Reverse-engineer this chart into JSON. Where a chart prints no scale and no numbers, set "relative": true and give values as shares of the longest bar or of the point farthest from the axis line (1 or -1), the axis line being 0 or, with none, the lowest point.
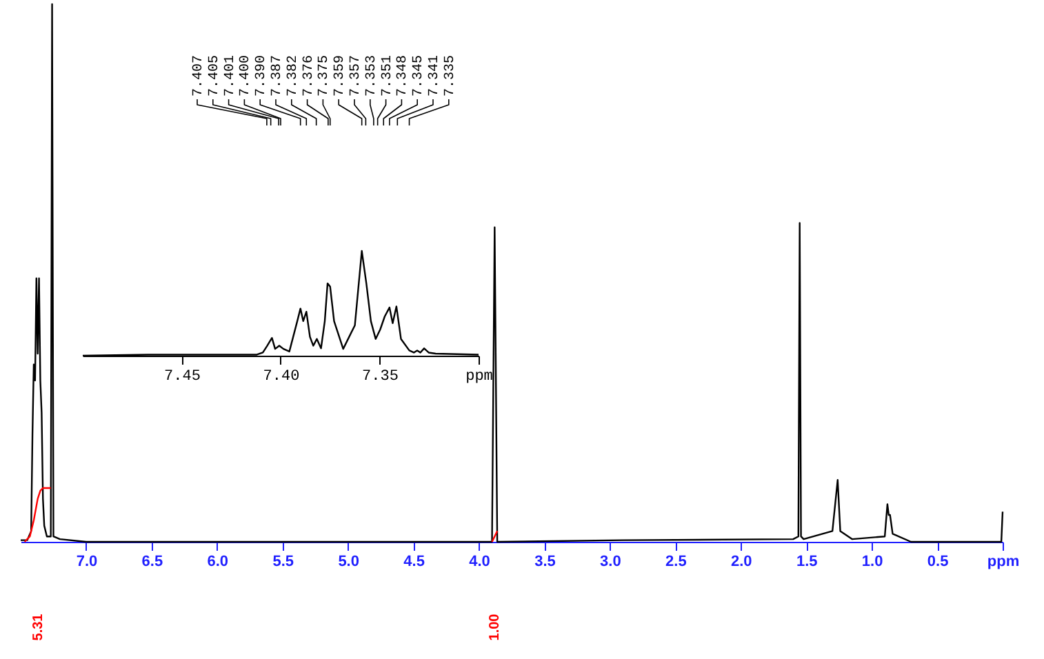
{
  "chart_data": [
    {
      "type": "line",
      "relative": true,
      "xlim": [
        7.5,
        0.0
      ],
      "xticks": [
        {
          "value": 7,
          "label": "7.0"
        },
        6.5,
        {
          "value": 6,
          "label": "6.0"
        },
        5.5,
        {
          "value": 5,
          "label": "5.0"
        },
        4.5,
        {
          "value": 4,
          "label": "4.0"
        },
        3.5,
        {
          "value": 3,
          "label": "3.0"
        },
        2.5,
        {
          "value": 2,
          "label": "2.0"
        },
        1.5,
        {
          "value": 1,
          "label": "1.0"
        },
        0.5,
        {
          "value": 0,
          "label": "ppm"
        }
      ],
      "series": [
        {
          "color": "#000000",
          "x": [
            7.5,
            7.45,
            7.42,
            7.41,
            7.4,
            7.39,
            7.38,
            7.37,
            7.36,
            7.35,
            7.34,
            7.33,
            7.32,
            7.3,
            7.27,
            7.26,
            7.25,
            7.2,
            7.0,
            5.0,
            3.9,
            3.88,
            3.86,
            2.9,
            1.6,
            1.56,
            1.55,
            1.54,
            1.52,
            1.3,
            1.26,
            1.24,
            1.15,
            0.9,
            0.88,
            0.87,
            0.86,
            0.84,
            0.7,
            0.01,
            0.0
          ],
          "values": [
            0.003,
            0.003,
            0.02,
            0.2,
            0.33,
            0.3,
            0.49,
            0.35,
            0.49,
            0.3,
            0.24,
            0.08,
            0.03,
            0.01,
            0.01,
            1,
            0.01,
            0.005,
            0,
            0,
            0,
            0.585,
            0,
            0.003,
            0.005,
            0.01,
            0.593,
            0.01,
            0.005,
            0.02,
            0.115,
            0.02,
            0.005,
            0.01,
            0.07,
            0.05,
            0.05,
            0.015,
            0,
            0,
            0.056
          ]
        },
        {
          "color": "#ff0000",
          "x": [
            7.47,
            7.43,
            7.4,
            7.37,
            7.35,
            7.33,
            7.27
          ],
          "values": [
            0,
            0.01,
            0.04,
            0.08,
            0.095,
            0.1,
            0.1
          ]
        },
        {
          "color": "#ff0000",
          "x": [
            3.9,
            3.88,
            3.86
          ],
          "values": [
            0,
            0.01,
            0.02
          ]
        }
      ],
      "annotations": [
        "5.31",
        "1.00"
      ]
    },
    {
      "type": "line",
      "relative": true,
      "xlim": [
        7.5,
        7.3
      ],
      "xticks": [
        7.45,
        {
          "value": 7.4,
          "label": "7.40"
        },
        7.35,
        {
          "value": 7.3,
          "label": "ppm"
        }
      ],
      "series": [
        {
          "color": "#000000",
          "x": [
            7.5,
            7.467,
            7.412,
            7.409,
            7.4068,
            7.4044,
            7.4028,
            7.4007,
            7.3986,
            7.3956,
            7.3916,
            7.39,
            7.3886,
            7.387,
            7.3852,
            7.3835,
            7.3817,
            7.3796,
            7.3777,
            7.3763,
            7.375,
            7.373,
            7.3684,
            7.3625,
            7.359,
            7.3567,
            7.3544,
            7.352,
            7.3497,
            7.3474,
            7.345,
            7.3434,
            7.3415,
            7.3392,
            7.335,
            7.3327,
            7.331,
            7.3294,
            7.3275,
            7.3252,
            7.3217,
            7.3
          ],
          "values": [
            0,
            0.01,
            0.01,
            0.03,
            0.095,
            0.17,
            0.065,
            0.095,
            0.065,
            0.04,
            0.33,
            0.45,
            0.33,
            0.42,
            0.18,
            0.095,
            0.16,
            0.07,
            0.33,
            0.69,
            0.66,
            0.33,
            0.065,
            0.29,
            1,
            0.69,
            0.33,
            0.16,
            0.25,
            0.375,
            0.46,
            0.31,
            0.47,
            0.16,
            0.05,
            0.03,
            0.05,
            0.03,
            0.07,
            0.03,
            0.02,
            0.01
          ]
        }
      ],
      "annotations": [
        {
          "text": "7.407",
          "x": 7.407
        },
        {
          "text": "7.405",
          "x": 7.405
        },
        {
          "text": "7.401",
          "x": 7.401
        },
        {
          "text": "7.400",
          "x": 7.4
        },
        {
          "text": "7.390",
          "x": 7.39
        },
        {
          "text": "7.387",
          "x": 7.387
        },
        {
          "text": "7.382",
          "x": 7.382
        },
        {
          "text": "7.376",
          "x": 7.376
        },
        {
          "text": "7.375",
          "x": 7.375
        },
        {
          "text": "7.359",
          "x": 7.359
        },
        {
          "text": "7.357",
          "x": 7.357
        },
        {
          "text": "7.353",
          "x": 7.353
        },
        {
          "text": "7.351",
          "x": 7.351
        },
        {
          "text": "7.348",
          "x": 7.348
        },
        {
          "text": "7.345",
          "x": 7.345
        },
        {
          "text": "7.341",
          "x": 7.341
        },
        {
          "text": "7.335",
          "x": 7.335
        }
      ]
    }
  ]
}
